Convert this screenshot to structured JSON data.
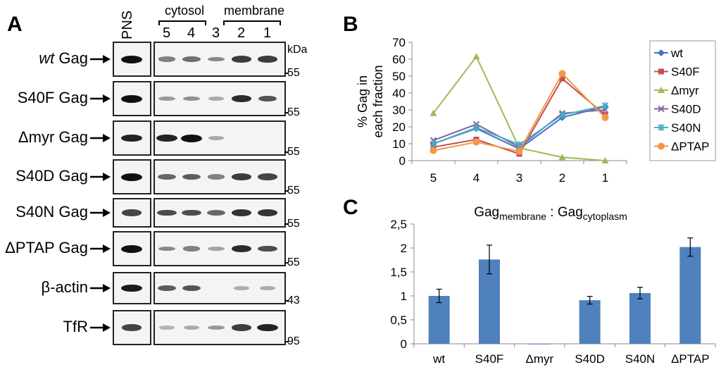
{
  "panels": {
    "a": "A",
    "b": "B",
    "c": "C"
  },
  "blot": {
    "pns": "PNS",
    "cytosol": "cytosol",
    "membrane": "membrane",
    "lanes": [
      "5",
      "4",
      "3",
      "2",
      "1"
    ],
    "kda": "kDa",
    "rows": [
      {
        "name": "wt",
        "suffix": "Gag",
        "italic": true,
        "marker": "55"
      },
      {
        "name": "S40F",
        "suffix": "Gag",
        "italic": false,
        "marker": "55"
      },
      {
        "name": "Δmyr",
        "suffix": "Gag",
        "italic": false,
        "marker": "55"
      },
      {
        "name": "S40D",
        "suffix": "Gag",
        "italic": false,
        "marker": "55"
      },
      {
        "name": "S40N",
        "suffix": "Gag",
        "italic": false,
        "marker": "55"
      },
      {
        "name": "ΔPTAP",
        "suffix": "Gag",
        "italic": false,
        "marker": "55"
      },
      {
        "name": "β-actin",
        "suffix": "",
        "italic": false,
        "marker": "43"
      },
      {
        "name": "TfR",
        "suffix": "",
        "italic": false,
        "marker": "95"
      }
    ],
    "band_intensity": [
      [
        1.0,
        0.35,
        0.45,
        0.3,
        0.75,
        0.75
      ],
      [
        1.0,
        0.2,
        0.25,
        0.1,
        0.85,
        0.6
      ],
      [
        0.9,
        0.9,
        1.0,
        0.1,
        0.0,
        0.0
      ],
      [
        1.0,
        0.5,
        0.55,
        0.35,
        0.75,
        0.7
      ],
      [
        0.7,
        0.65,
        0.65,
        0.5,
        0.8,
        0.8
      ],
      [
        1.0,
        0.3,
        0.35,
        0.15,
        0.85,
        0.65
      ],
      [
        0.95,
        0.55,
        0.6,
        0.0,
        0.08,
        0.08
      ],
      [
        0.7,
        0.05,
        0.1,
        0.2,
        0.75,
        0.9
      ]
    ]
  },
  "chart_data": [
    {
      "type": "line",
      "ylabel_lines": [
        "% Gag in",
        "each fraction"
      ],
      "x": [
        "5",
        "4",
        "3",
        "2",
        "1"
      ],
      "ylim": [
        0,
        70
      ],
      "yticks": [
        "0",
        "10",
        "20",
        "30",
        "40",
        "50",
        "60",
        "70"
      ],
      "grid": false,
      "legend_position": "right",
      "series": [
        {
          "name": "wt",
          "color": "#4472C4",
          "marker": "diamond",
          "values": [
            10,
            19,
            7,
            25.5,
            32
          ]
        },
        {
          "name": "S40F",
          "color": "#C0504D",
          "marker": "square",
          "values": [
            8,
            12.5,
            4,
            48.5,
            27
          ]
        },
        {
          "name": "Δmyr",
          "color": "#9BBB59",
          "marker": "triangle",
          "values": [
            28,
            61.5,
            7.5,
            2,
            0
          ]
        },
        {
          "name": "S40D",
          "color": "#8064A2",
          "marker": "x",
          "values": [
            12,
            21.5,
            8,
            28,
            30
          ]
        },
        {
          "name": "S40N",
          "color": "#4BACC6",
          "marker": "star",
          "values": [
            10,
            19.5,
            9.5,
            27,
            32.5
          ]
        },
        {
          "name": "ΔPTAP",
          "color": "#F79646",
          "marker": "circle",
          "values": [
            6,
            11,
            5.5,
            51.5,
            25.5
          ]
        }
      ]
    },
    {
      "type": "bar",
      "title_main": "Gag",
      "title_sub1": "membrane",
      "title_sep": " : Gag",
      "title_sub2": "cytoplasm",
      "categories": [
        "wt",
        "S40F",
        "Δmyr",
        "S40D",
        "S40N",
        "ΔPTAP"
      ],
      "values": [
        1.0,
        1.76,
        0.0,
        0.91,
        1.06,
        2.02
      ],
      "errors": [
        0.14,
        0.3,
        0.0,
        0.08,
        0.12,
        0.19
      ],
      "ylim": [
        0,
        2.5
      ],
      "yticks": [
        "0",
        "0,5",
        "1",
        "1,5",
        "2",
        "2,5"
      ],
      "color": "#4F81BD",
      "grid": false
    }
  ]
}
